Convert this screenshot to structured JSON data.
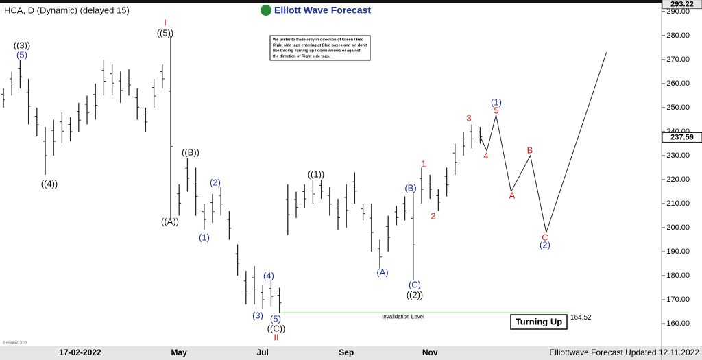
{
  "chart_data": {
    "type": "range",
    "title": "HCA, D (Dynamic) (delayed 15)",
    "brand": "Elliott Wave Forecast",
    "note": [
      "We prefer to trade only in direction of Green / Red",
      "Right side tags entering at Blue boxes and we don't",
      "like trading Turning up / down arrows or against",
      "the direction of Right side tags."
    ],
    "cursor_date": "17-02-2022",
    "footer": "Elliottwave Forecast Updated 12.11.2022",
    "copyright": "© eSignal, 2022",
    "categories": [
      null,
      null,
      null,
      null,
      null,
      null,
      null,
      null,
      null,
      null,
      null,
      null,
      null,
      null,
      null,
      null,
      null,
      null,
      null,
      null,
      null,
      "May",
      null,
      null,
      null,
      null,
      null,
      null,
      null,
      null,
      null,
      "Jul",
      null,
      null,
      null,
      null,
      null,
      null,
      null,
      null,
      null,
      "Sep",
      null,
      null,
      null,
      null,
      null,
      null,
      null,
      null,
      null,
      "Nov",
      null,
      null,
      null,
      null,
      null,
      null
    ],
    "highs": [
      258,
      265,
      270,
      262,
      250,
      242,
      245,
      248,
      246,
      252,
      255,
      260,
      270,
      268,
      265,
      266,
      258,
      250,
      262,
      268,
      280,
      218,
      229,
      225,
      210,
      214,
      217,
      207,
      193,
      182,
      184,
      176,
      178,
      175,
      218,
      215,
      218,
      220,
      220,
      217,
      212,
      218,
      223,
      210,
      210,
      195,
      205,
      209,
      213,
      215,
      225,
      222,
      216,
      225,
      235,
      240,
      243,
      242
    ],
    "lows": [
      250,
      255,
      258,
      243,
      238,
      222,
      230,
      235,
      236,
      240,
      243,
      245,
      255,
      255,
      252,
      255,
      245,
      240,
      250,
      258,
      203,
      205,
      215,
      205,
      199,
      202,
      205,
      195,
      180,
      168,
      168,
      166,
      167,
      164.5,
      197,
      204,
      208,
      210,
      212,
      205,
      199,
      200,
      210,
      203,
      190,
      183,
      190,
      201,
      203,
      178,
      210,
      212,
      207,
      213,
      222,
      230,
      233,
      235
    ],
    "color": "#222222",
    "projection": {
      "x": [
        57,
        57.8,
        58.9,
        60.7,
        63,
        64.9,
        72.1
      ],
      "values": [
        238,
        232,
        247,
        215,
        230,
        198,
        273
      ],
      "color": "#222222"
    },
    "wave_labels": [
      "((3))",
      "(5)",
      "((4))",
      "I",
      "((5))",
      "((B))",
      "((A))",
      "(2)",
      "(1)",
      "(4)",
      "(3)",
      "(5)",
      "((C))",
      "II",
      "((1))",
      "(A)",
      "(B)",
      "(C)",
      "((2))",
      "1",
      "2",
      "3",
      "4",
      "(1)",
      "5",
      "B",
      "A",
      "C",
      "(2)"
    ],
    "wave_colors": [
      "#111",
      "#1c2f9e",
      "#111",
      "#d01818",
      "#111",
      "#111",
      "#111",
      "#1c2f9e",
      "#1c2f9e",
      "#1c2f9e",
      "#1c2f9e",
      "#1c2f9e",
      "#111",
      "#d01818",
      "#111",
      "#1c2f9e",
      "#1c2f9e",
      "#1c2f9e",
      "#111",
      "#d01818",
      "#d01818",
      "#d01818",
      "#d01818",
      "#1c2f9e",
      "#d01818",
      "#d01818",
      "#d01818",
      "#d01818",
      "#1c2f9e"
    ],
    "invalidation": {
      "label": "Invalidation Level",
      "value": 164.52,
      "value_label": "164.52",
      "color": "#7dd67d"
    },
    "signal": "Turning Up",
    "last_price": {
      "value": 237.59,
      "label": "237.59"
    },
    "high_price": {
      "value": 293.22,
      "label": "293.22"
    },
    "ylim": [
      150.6,
      293.4
    ],
    "yticks": [
      {
        "value": 160,
        "label": "160.00"
      },
      {
        "value": 170,
        "label": "170.00"
      },
      {
        "value": 180,
        "label": "180.00"
      },
      {
        "value": 190,
        "label": "190.00"
      },
      {
        "value": 200,
        "label": "200.00"
      },
      {
        "value": 210,
        "label": "210.00"
      },
      {
        "value": 220,
        "label": "220.00"
      },
      {
        "value": 230,
        "label": "230.00"
      },
      {
        "value": 240,
        "label": "240.00"
      },
      {
        "value": 250,
        "label": "250.00"
      },
      {
        "value": 260,
        "label": "260.00"
      },
      {
        "value": 270,
        "label": "270.00"
      },
      {
        "value": 280,
        "label": "280.00"
      },
      {
        "value": 290,
        "label": "290.00"
      }
    ]
  }
}
